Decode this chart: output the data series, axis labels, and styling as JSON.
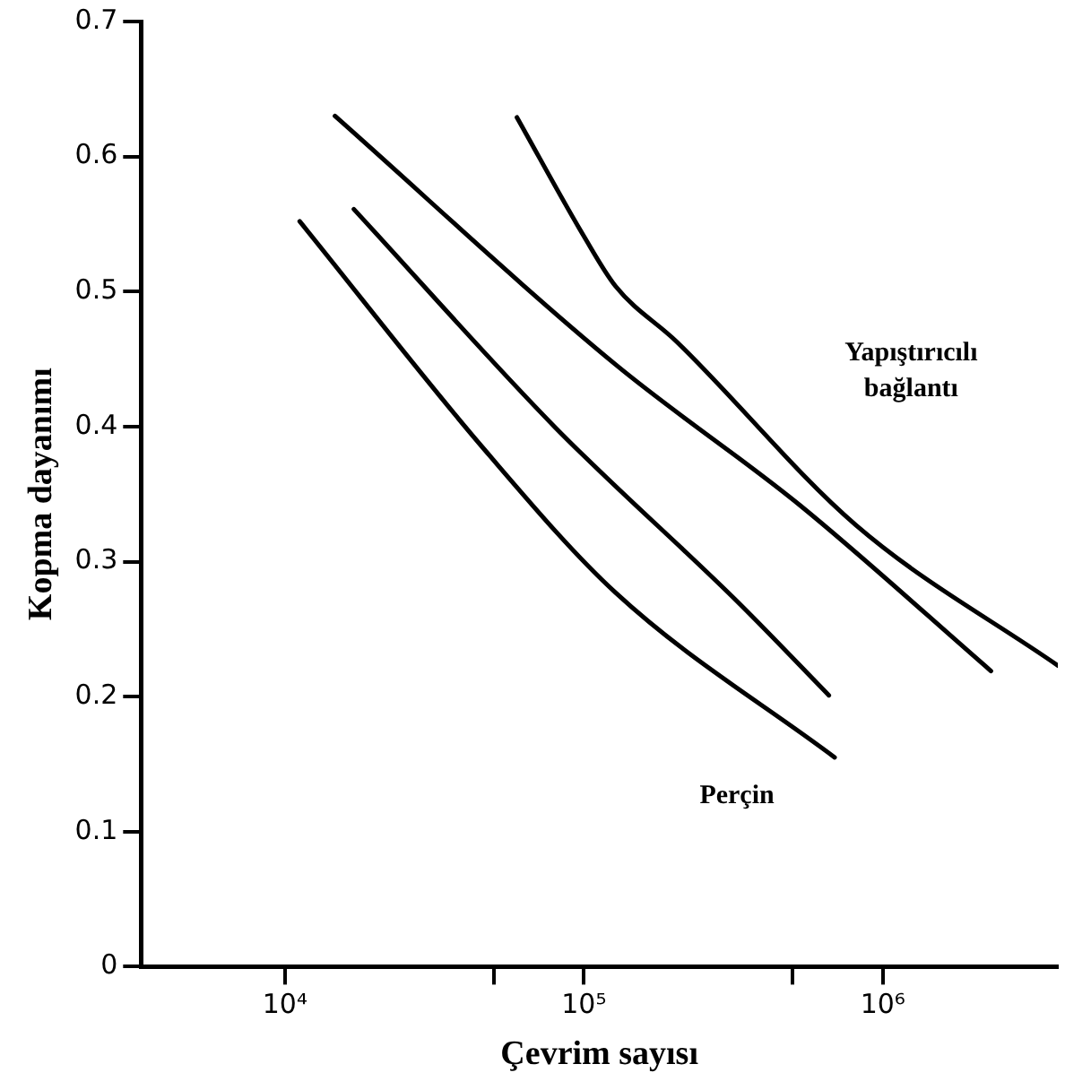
{
  "chart_data": {
    "type": "line",
    "xlabel": "Çevrim sayısı",
    "ylabel": "Kopma dayanımı",
    "log": "x",
    "grid": false,
    "legend": false,
    "marker": "none",
    "line_style": "solid",
    "xlim": [
      3300,
      3850000
    ],
    "xticks": [
      {
        "value": 10000,
        "label": "10⁴"
      },
      {
        "value": 50000,
        "label": null
      },
      {
        "value": 100000,
        "label": "10⁵"
      },
      {
        "value": 500000,
        "label": null
      },
      {
        "value": 1000000,
        "label": "10⁶"
      }
    ],
    "ylim": [
      0,
      0.7
    ],
    "yticks": [
      0,
      0.1,
      0.2,
      0.3,
      0.4,
      0.5,
      0.6,
      0.7
    ],
    "series": [
      {
        "color": "#000000",
        "x": [
          14700,
          127600,
          533000,
          2300000
        ],
        "values": [
          0.63,
          0.446,
          0.341,
          0.219
        ]
      },
      {
        "color": "#000000",
        "x": [
          59700,
          100000,
          127600,
          204000,
          813000,
          3850000
        ],
        "values": [
          0.629,
          0.541,
          0.504,
          0.463,
          0.327,
          0.223
        ]
      },
      {
        "color": "#000000",
        "x": [
          11200,
          46900,
          127600,
          690000
        ],
        "values": [
          0.552,
          0.382,
          0.277,
          0.155
        ]
      },
      {
        "color": "#000000",
        "x": [
          17000,
          79700,
          331000,
          660000
        ],
        "values": [
          0.561,
          0.4,
          0.269,
          0.201
        ]
      }
    ],
    "annotations": [
      "Yapıştırıcılı\nbağlantı",
      "Perçin"
    ]
  }
}
